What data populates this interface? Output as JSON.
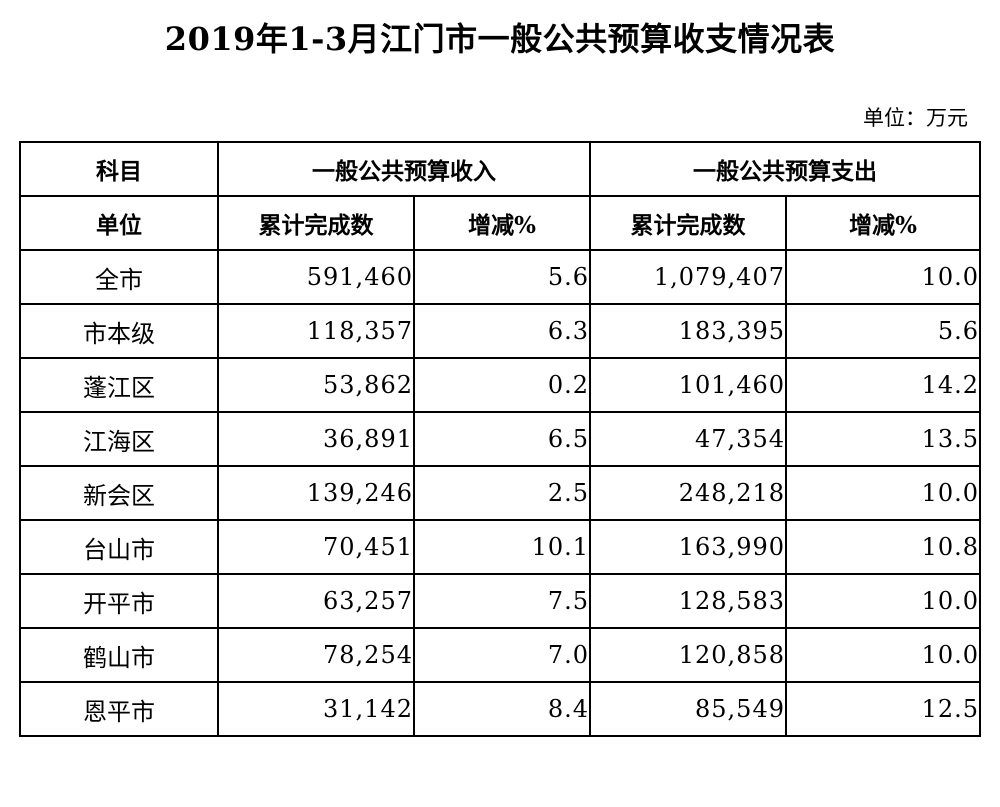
{
  "page": {
    "title": "2019年1-3月江门市一般公共预算收支情况表",
    "unit_note": "单位：万元"
  },
  "chart_data": {
    "type": "table",
    "title": "2019年1-3月江门市一般公共预算收支情况表",
    "unit": "万元",
    "header": {
      "row1": {
        "subject": "科目",
        "income_group": "一般公共预算收入",
        "expense_group": "一般公共预算支出"
      },
      "row2": {
        "unit": "单位",
        "income_cumulative": "累计完成数",
        "income_change": "增减%",
        "expense_cumulative": "累计完成数",
        "expense_change": "增减%"
      }
    },
    "rows": [
      {
        "name": "全市",
        "income": "591,460",
        "income_change": "5.6",
        "expense": "1,079,407",
        "expense_change": "10.0"
      },
      {
        "name": "市本级",
        "income": "118,357",
        "income_change": "6.3",
        "expense": "183,395",
        "expense_change": "5.6"
      },
      {
        "name": "蓬江区",
        "income": "53,862",
        "income_change": "0.2",
        "expense": "101,460",
        "expense_change": "14.2"
      },
      {
        "name": "江海区",
        "income": "36,891",
        "income_change": "6.5",
        "expense": "47,354",
        "expense_change": "13.5"
      },
      {
        "name": "新会区",
        "income": "139,246",
        "income_change": "2.5",
        "expense": "248,218",
        "expense_change": "10.0"
      },
      {
        "name": "台山市",
        "income": "70,451",
        "income_change": "10.1",
        "expense": "163,990",
        "expense_change": "10.8"
      },
      {
        "name": "开平市",
        "income": "63,257",
        "income_change": "7.5",
        "expense": "128,583",
        "expense_change": "10.0"
      },
      {
        "name": "鹤山市",
        "income": "78,254",
        "income_change": "7.0",
        "expense": "120,858",
        "expense_change": "10.0"
      },
      {
        "name": "恩平市",
        "income": "31,142",
        "income_change": "8.4",
        "expense": "85,549",
        "expense_change": "12.5"
      }
    ]
  }
}
